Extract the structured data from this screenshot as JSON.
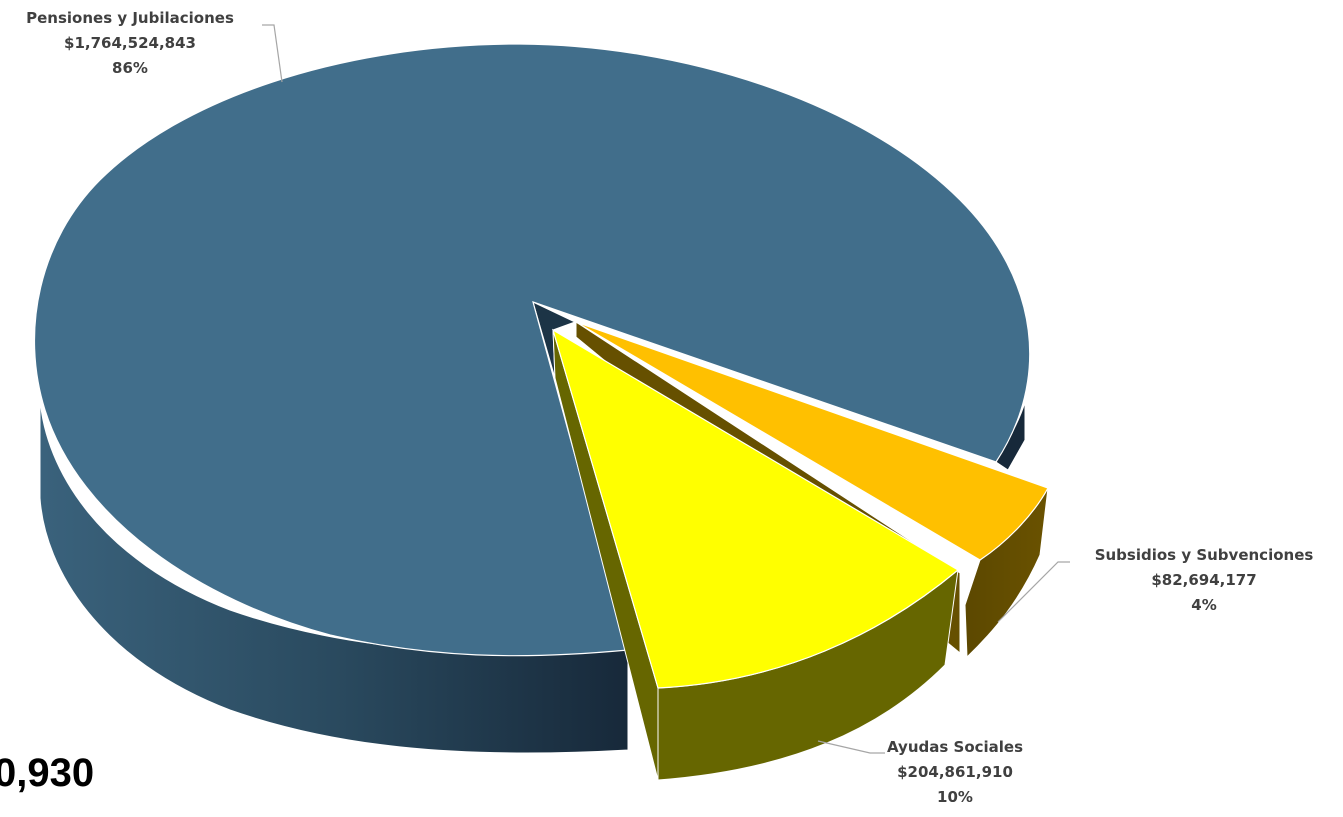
{
  "chart_data": {
    "type": "pie",
    "style": "3d-exploded",
    "slices": [
      {
        "label": "Pensiones y Jubilaciones",
        "value": 1764524843,
        "value_text": "$1,764,524,843",
        "percent_text": "86%",
        "color": "#416E8B",
        "side_color": "#24465C"
      },
      {
        "label": "Subsidios y Subvenciones",
        "value": 82694177,
        "value_text": "$82,694,177",
        "percent_text": "4%",
        "color": "#FFC000",
        "side_color": "#665000"
      },
      {
        "label": "Ayudas Sociales",
        "value": 204861910,
        "value_text": "$204,861,910",
        "percent_text": "10%",
        "color": "#FFFF00",
        "side_color": "#666600"
      }
    ]
  },
  "partial_total_text": "0,930"
}
